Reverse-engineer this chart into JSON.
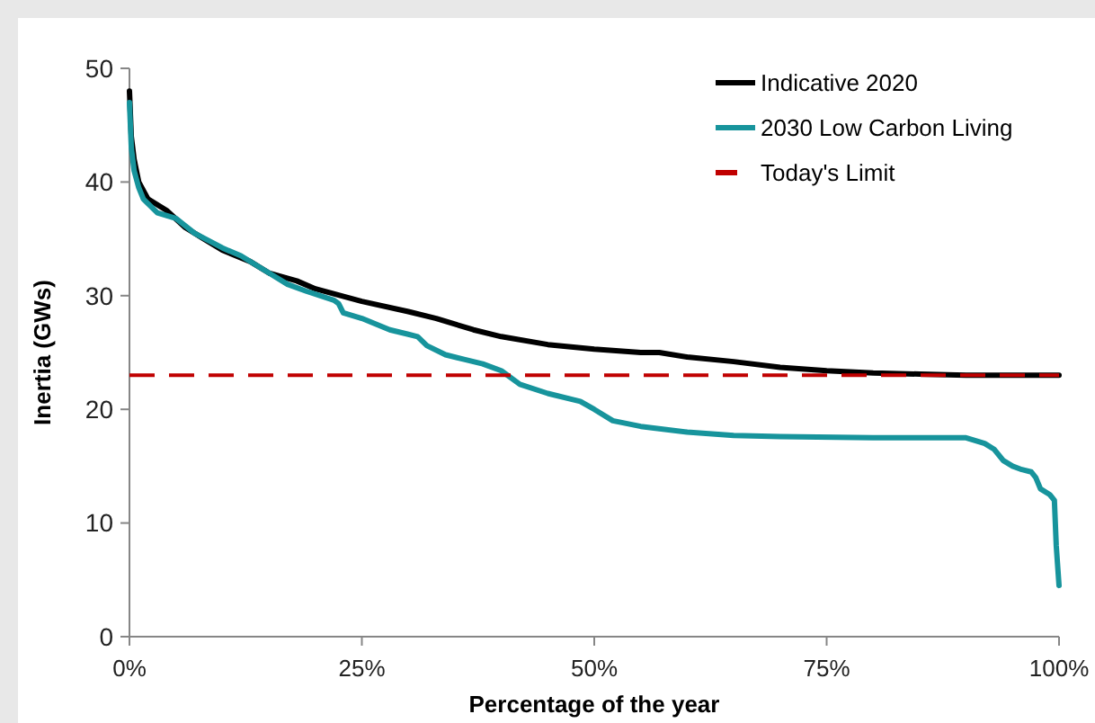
{
  "chart_data": {
    "type": "line",
    "xlabel": "Percentage of the year",
    "ylabel": "Inertia (GWs)",
    "xlim": [
      0,
      100
    ],
    "xticks": [
      {
        "value": 0,
        "label": "0%"
      },
      {
        "value": 25,
        "label": "25%"
      },
      {
        "value": 50,
        "label": "50%"
      },
      {
        "value": 75,
        "label": "75%"
      },
      {
        "value": 100,
        "label": "100%"
      }
    ],
    "ylim": [
      0,
      50
    ],
    "yticks": [
      0,
      10,
      20,
      30,
      40,
      50
    ],
    "grid": false,
    "legend": "top right",
    "line_style": "solid",
    "series": [
      {
        "name": "Indicative 2020",
        "color": "#000000",
        "x": [
          0,
          0.2,
          0.5,
          1,
          2,
          4,
          6,
          8,
          10,
          13,
          15,
          18,
          20,
          25,
          30,
          33,
          37,
          40,
          45,
          50,
          55,
          57,
          60,
          65,
          70,
          75,
          80,
          85,
          90,
          100
        ],
        "values": [
          48,
          44,
          42,
          40,
          38.5,
          37.5,
          36,
          35,
          34,
          33,
          32,
          31.3,
          30.6,
          29.5,
          28.6,
          28,
          27,
          26.4,
          25.7,
          25.3,
          25,
          25,
          24.6,
          24.2,
          23.7,
          23.4,
          23.2,
          23.1,
          23,
          23
        ]
      },
      {
        "name": "2030 Low Carbon Living",
        "color": "#17949c",
        "x": [
          0,
          0.2,
          0.5,
          1,
          1.5,
          3,
          5,
          7,
          10,
          12,
          15,
          17,
          19,
          22,
          22.5,
          23,
          25,
          28,
          30,
          31,
          32,
          34,
          36,
          38,
          40,
          42,
          45,
          48,
          48.5,
          50,
          52,
          55,
          60,
          65,
          70,
          80,
          90,
          92,
          93,
          94,
          95,
          96,
          97,
          97.5,
          98,
          99,
          99.5,
          99.7,
          100
        ],
        "values": [
          47,
          43,
          41,
          39.5,
          38.5,
          37.3,
          36.8,
          35.5,
          34.2,
          33.5,
          32,
          31,
          30.4,
          29.6,
          29.3,
          28.5,
          28,
          27,
          26.6,
          26.4,
          25.6,
          24.8,
          24.4,
          24,
          23.4,
          22.2,
          21.4,
          20.8,
          20.7,
          20,
          19,
          18.5,
          18,
          17.7,
          17.6,
          17.5,
          17.5,
          17,
          16.5,
          15.5,
          15,
          14.7,
          14.5,
          14,
          13,
          12.5,
          12,
          8,
          4.5
        ]
      }
    ],
    "ref_lines": [
      {
        "axis": "y",
        "value": 23,
        "label": "Today's Limit",
        "color": "#c00000",
        "line_style": "dashed"
      }
    ]
  }
}
